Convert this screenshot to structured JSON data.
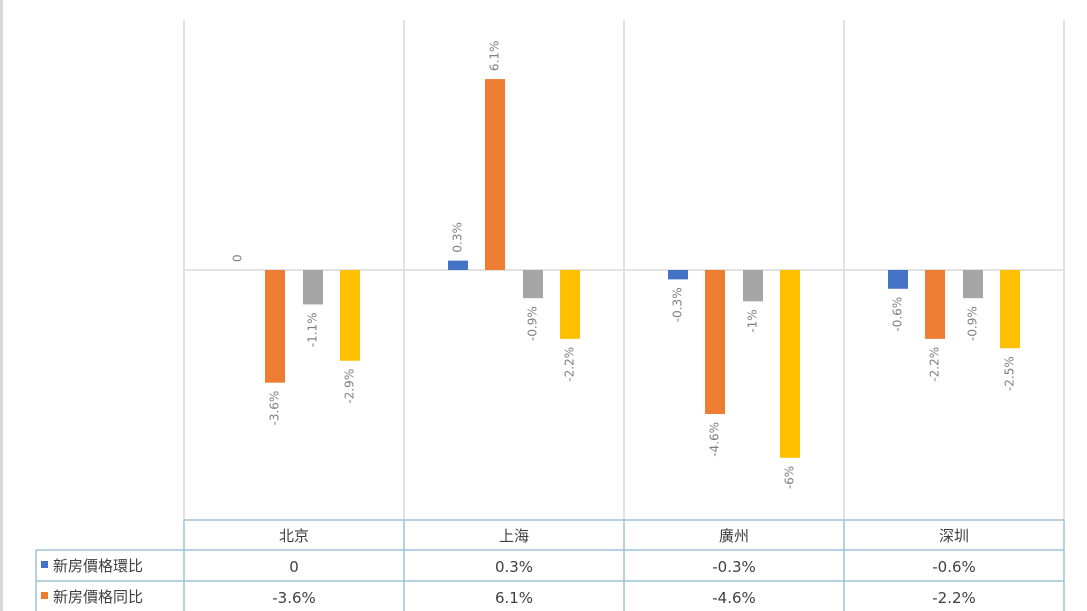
{
  "chart_data": {
    "type": "bar",
    "categories": [
      "北京",
      "上海",
      "廣州",
      "深圳"
    ],
    "series": [
      {
        "name": "新房價格環比",
        "color": "#4472c4",
        "values": [
          0,
          0.3,
          -0.3,
          -0.6
        ],
        "labels": [
          "0",
          "0.3%",
          "-0.3%",
          "-0.6%"
        ],
        "table": [
          "0",
          "0.3%",
          "-0.3%",
          "-0.6%"
        ]
      },
      {
        "name": "新房價格同比",
        "color": "#ed7d31",
        "values": [
          -3.6,
          6.1,
          -4.6,
          -2.2
        ],
        "labels": [
          "-3.6%",
          "6.1%",
          "-4.6%",
          "-2.2%"
        ],
        "table": [
          "-3.6%",
          "6.1%",
          "-4.6%",
          "-2.2%"
        ]
      },
      {
        "name": "",
        "color": "#a5a5a5",
        "values": [
          -1.1,
          -0.9,
          -1,
          -0.9
        ],
        "labels": [
          "-1.1%",
          "-0.9%",
          "-1%",
          "-0.9%"
        ]
      },
      {
        "name": "",
        "color": "#ffc000",
        "values": [
          -2.9,
          -2.2,
          -6,
          -2.5
        ],
        "labels": [
          "-2.9%",
          "-2.2%",
          "-6%",
          "-2.5%"
        ]
      }
    ],
    "ylim": [
      -8,
      8
    ],
    "grid": "vertical category separators",
    "legend": "data table below chart"
  }
}
